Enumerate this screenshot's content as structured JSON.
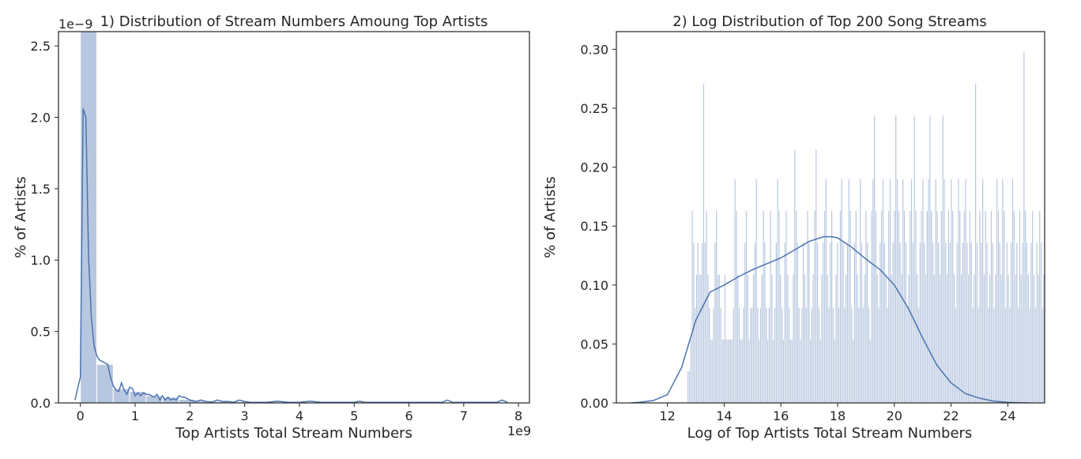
{
  "colors": {
    "bar_fill": "#4c72b0",
    "bar_opacity": 0.4,
    "kde_line": "#4c72b0",
    "axes": "#262626",
    "background": "#ffffff"
  },
  "chart_data": [
    {
      "type": "bar",
      "subtype": "histogram_with_kde",
      "title": "1) Distribution of Stream Numbers Amoung Top Artists",
      "xlabel": "Top Artists Total Stream Numbers",
      "ylabel": "% of Artists",
      "x_offset_text": "1e9",
      "y_offset_text": "1e−9",
      "xlim": [
        -0.4,
        8.2
      ],
      "ylim": [
        0,
        2.6
      ],
      "xticks": [
        0,
        1,
        2,
        3,
        4,
        5,
        6,
        7,
        8
      ],
      "xtick_labels": [
        "0",
        "1",
        "2",
        "3",
        "4",
        "5",
        "6",
        "7",
        "8"
      ],
      "yticks": [
        0,
        0.5,
        1.0,
        1.5,
        2.0,
        2.5
      ],
      "ytick_labels": [
        "0.0",
        "0.5",
        "1.0",
        "1.5",
        "2.0",
        "2.5"
      ],
      "grid": false,
      "histogram": {
        "bin_edges": [
          0,
          0.3,
          0.6,
          0.9,
          1.2,
          1.5,
          1.8,
          2.1,
          2.4,
          2.7,
          3.0,
          3.3,
          3.6,
          3.9,
          4.2,
          4.5,
          4.8,
          5.1,
          5.4,
          5.7,
          6.0,
          6.3,
          6.6,
          6.9,
          7.2,
          7.5,
          7.8
        ],
        "values": [
          2.62,
          0.27,
          0.1,
          0.08,
          0.05,
          0.04,
          0.025,
          0.015,
          0.01,
          0.01,
          0.005,
          0.003,
          0.003,
          0.002,
          0.002,
          0.002,
          0.002,
          0.002,
          0.001,
          0.001,
          0.001,
          0.001,
          0.002,
          0.001,
          0.001,
          0.001
        ]
      },
      "kde": {
        "x": [
          -0.1,
          0.0,
          0.05,
          0.1,
          0.15,
          0.2,
          0.25,
          0.3,
          0.35,
          0.4,
          0.5,
          0.55,
          0.6,
          0.65,
          0.7,
          0.75,
          0.8,
          0.85,
          0.9,
          0.95,
          1.0,
          1.05,
          1.1,
          1.15,
          1.2,
          1.25,
          1.3,
          1.35,
          1.4,
          1.45,
          1.5,
          1.55,
          1.6,
          1.65,
          1.7,
          1.75,
          1.8,
          1.85,
          1.9,
          1.95,
          2.0,
          2.1,
          2.2,
          2.3,
          2.4,
          2.5,
          2.6,
          2.7,
          2.8,
          2.9,
          3.0,
          3.1,
          3.2,
          3.4,
          3.6,
          3.8,
          4.0,
          4.2,
          4.4,
          4.6,
          4.8,
          5.0,
          5.1,
          5.2,
          5.4,
          5.6,
          5.8,
          6.0,
          6.2,
          6.4,
          6.6,
          6.7,
          6.8,
          7.0,
          7.2,
          7.4,
          7.6,
          7.7,
          7.8
        ],
        "y": [
          0.02,
          0.18,
          2.06,
          2.0,
          1.02,
          0.6,
          0.4,
          0.33,
          0.3,
          0.29,
          0.27,
          0.18,
          0.12,
          0.09,
          0.08,
          0.14,
          0.09,
          0.06,
          0.11,
          0.1,
          0.05,
          0.07,
          0.05,
          0.07,
          0.06,
          0.06,
          0.05,
          0.04,
          0.06,
          0.02,
          0.05,
          0.02,
          0.04,
          0.02,
          0.03,
          0.02,
          0.05,
          0.04,
          0.04,
          0.03,
          0.02,
          0.01,
          0.02,
          0.01,
          0.005,
          0.02,
          0.01,
          0.01,
          0.005,
          0.02,
          0.01,
          0.005,
          0.004,
          0.004,
          0.012,
          0.004,
          0.004,
          0.012,
          0.004,
          0.004,
          0.004,
          0.004,
          0.012,
          0.004,
          0.004,
          0.004,
          0.004,
          0.004,
          0.004,
          0.004,
          0.004,
          0.02,
          0.004,
          0.004,
          0.004,
          0.004,
          0.004,
          0.02,
          0.004
        ]
      }
    },
    {
      "type": "bar",
      "subtype": "histogram_with_kde",
      "title": "2) Log Distribution of Top 200 Song Streams",
      "xlabel": "Log of Top Artists Total Stream Numbers",
      "ylabel": "% of Artists",
      "xlim": [
        10.2,
        25.3
      ],
      "ylim": [
        0,
        0.315
      ],
      "xticks": [
        12,
        14,
        16,
        18,
        20,
        22,
        24
      ],
      "xtick_labels": [
        "12",
        "14",
        "16",
        "18",
        "20",
        "22",
        "24"
      ],
      "yticks": [
        0,
        0.05,
        0.1,
        0.15,
        0.2,
        0.25,
        0.3
      ],
      "ytick_labels": [
        "0.00",
        "0.05",
        "0.10",
        "0.15",
        "0.20",
        "0.25",
        "0.30"
      ],
      "grid": false,
      "histogram": {
        "x_start": 12.7,
        "bin_width": 0.0502,
        "values": [
          0.027,
          0.027,
          0.054,
          0.163,
          0.136,
          0.081,
          0.109,
          0.136,
          0.109,
          0.109,
          0.136,
          0.271,
          0.136,
          0.163,
          0.109,
          0.081,
          0.054,
          0.054,
          0.081,
          0.136,
          0.163,
          0.109,
          0.109,
          0.081,
          0.054,
          0.054,
          0.109,
          0.054,
          0.054,
          0.054,
          0.054,
          0.054,
          0.081,
          0.19,
          0.163,
          0.109,
          0.081,
          0.054,
          0.054,
          0.081,
          0.136,
          0.163,
          0.109,
          0.054,
          0.081,
          0.081,
          0.109,
          0.136,
          0.19,
          0.081,
          0.054,
          0.081,
          0.109,
          0.163,
          0.136,
          0.081,
          0.054,
          0.081,
          0.163,
          0.109,
          0.054,
          0.081,
          0.136,
          0.19,
          0.163,
          0.109,
          0.081,
          0.054,
          0.136,
          0.163,
          0.109,
          0.081,
          0.054,
          0.054,
          0.109,
          0.215,
          0.163,
          0.136,
          0.081,
          0.054,
          0.081,
          0.136,
          0.109,
          0.081,
          0.163,
          0.136,
          0.054,
          0.081,
          0.109,
          0.163,
          0.215,
          0.136,
          0.081,
          0.054,
          0.109,
          0.136,
          0.163,
          0.19,
          0.109,
          0.081,
          0.136,
          0.163,
          0.081,
          0.054,
          0.109,
          0.136,
          0.081,
          0.163,
          0.19,
          0.136,
          0.081,
          0.109,
          0.136,
          0.19,
          0.163,
          0.081,
          0.054,
          0.136,
          0.163,
          0.109,
          0.081,
          0.19,
          0.136,
          0.081,
          0.109,
          0.163,
          0.136,
          0.081,
          0.054,
          0.163,
          0.19,
          0.244,
          0.163,
          0.109,
          0.081,
          0.136,
          0.163,
          0.19,
          0.136,
          0.109,
          0.081,
          0.163,
          0.19,
          0.109,
          0.136,
          0.163,
          0.244,
          0.19,
          0.163,
          0.136,
          0.109,
          0.19,
          0.163,
          0.136,
          0.081,
          0.109,
          0.163,
          0.19,
          0.136,
          0.244,
          0.163,
          0.109,
          0.081,
          0.136,
          0.163,
          0.19,
          0.136,
          0.109,
          0.163,
          0.19,
          0.244,
          0.163,
          0.136,
          0.109,
          0.19,
          0.163,
          0.136,
          0.109,
          0.163,
          0.244,
          0.19,
          0.136,
          0.109,
          0.163,
          0.136,
          0.19,
          0.163,
          0.109,
          0.081,
          0.136,
          0.19,
          0.163,
          0.109,
          0.136,
          0.163,
          0.19,
          0.136,
          0.109,
          0.163,
          0.136,
          0.081,
          0.109,
          0.271,
          0.136,
          0.081,
          0.163,
          0.136,
          0.19,
          0.109,
          0.163,
          0.136,
          0.081,
          0.109,
          0.163,
          0.136,
          0.081,
          0.109,
          0.19,
          0.163,
          0.136,
          0.109,
          0.19,
          0.163,
          0.081,
          0.136,
          0.109,
          0.081,
          0.136,
          0.19,
          0.163,
          0.109,
          0.136,
          0.081,
          0.163,
          0.109,
          0.136,
          0.298,
          0.163,
          0.136,
          0.109,
          0.081,
          0.136,
          0.163,
          0.109,
          0.081,
          0.136,
          0.109,
          0.163,
          0.136,
          0.081,
          0.109,
          0.136,
          0.163,
          0.081,
          0.109,
          0.136,
          0.081,
          0.054,
          0.109,
          0.136,
          0.081,
          0.109,
          0.054,
          0.081,
          0.136,
          0.081,
          0.054,
          0.109,
          0.081,
          0.054,
          0.081,
          0.109,
          0.054,
          0.081,
          0.054,
          0.081,
          0.109,
          0.054,
          0.081,
          0.054,
          0.109,
          0.054,
          0.081,
          0.054,
          0.054,
          0.081,
          0.054,
          0.081,
          0.054,
          0.054,
          0.027,
          0.054,
          0.054,
          0.027,
          0.054,
          0.054,
          0.027,
          0.027,
          0.054,
          0.027,
          0.027,
          0.054,
          0.027,
          0.027,
          0.027,
          0.027,
          0.027,
          0.027,
          0.027,
          0.027,
          0.027,
          0.027,
          0.027,
          0.027,
          0.027,
          0.027,
          0.027,
          0.027,
          0.027
        ]
      },
      "kde": {
        "x": [
          10.7,
          11.0,
          11.5,
          12.0,
          12.5,
          13.0,
          13.5,
          14.0,
          14.5,
          15.0,
          15.5,
          16.0,
          16.5,
          17.0,
          17.5,
          17.8,
          18.0,
          18.5,
          19.0,
          19.5,
          20.0,
          20.5,
          21.0,
          21.5,
          22.0,
          22.5,
          23.0,
          23.5,
          24.0,
          24.5,
          24.8
        ],
        "y": [
          0.0,
          0.0005,
          0.002,
          0.007,
          0.03,
          0.07,
          0.094,
          0.1,
          0.107,
          0.113,
          0.118,
          0.123,
          0.13,
          0.137,
          0.141,
          0.141,
          0.14,
          0.132,
          0.122,
          0.113,
          0.1,
          0.08,
          0.055,
          0.032,
          0.017,
          0.008,
          0.004,
          0.0015,
          0.0005,
          0.0001,
          0.0
        ]
      }
    }
  ]
}
